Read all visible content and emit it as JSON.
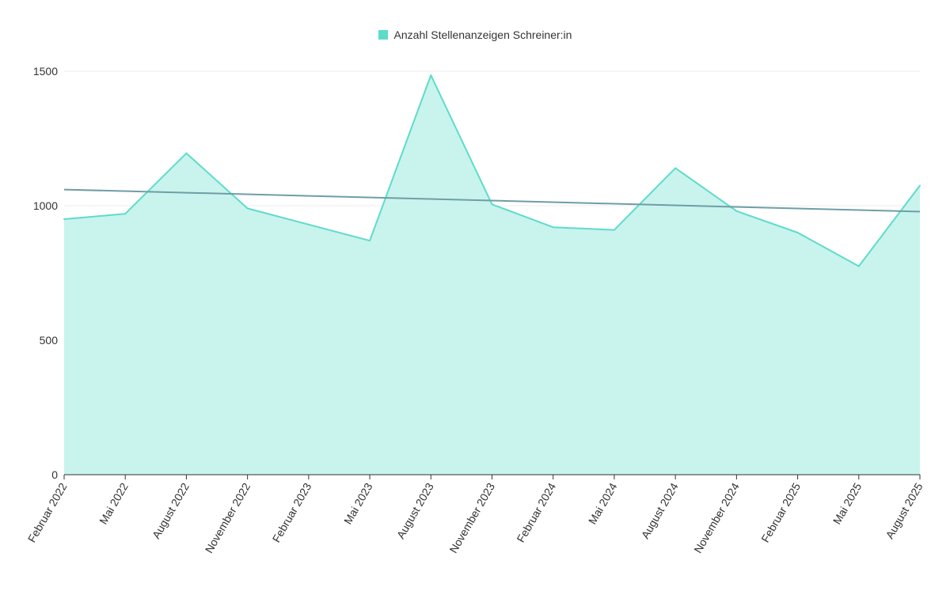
{
  "chart_data": {
    "type": "area",
    "categories": [
      "Februar 2022",
      "Mai 2022",
      "August 2022",
      "November 2022",
      "Februar 2023",
      "Mai 2023",
      "August 2023",
      "November 2023",
      "Februar 2024",
      "Mai 2024",
      "August 2024",
      "November 2024",
      "Februar 2025",
      "Mai 2025",
      "August 2025"
    ],
    "series": [
      {
        "name": "Anzahl Stellenanzeigen Schreiner:in",
        "values": [
          950,
          970,
          1195,
          990,
          930,
          870,
          1485,
          1005,
          920,
          910,
          1140,
          980,
          900,
          775,
          1075
        ],
        "color": "#5ddccb",
        "fill": "#c9f3ed"
      }
    ],
    "trendline": {
      "start": 1060,
      "end": 978,
      "color": "#6e9ea6"
    },
    "ylim": [
      0,
      1500
    ],
    "yticks": [
      "0",
      "500",
      "1000",
      "1500"
    ],
    "grid": true,
    "legend_position": "top-center"
  }
}
